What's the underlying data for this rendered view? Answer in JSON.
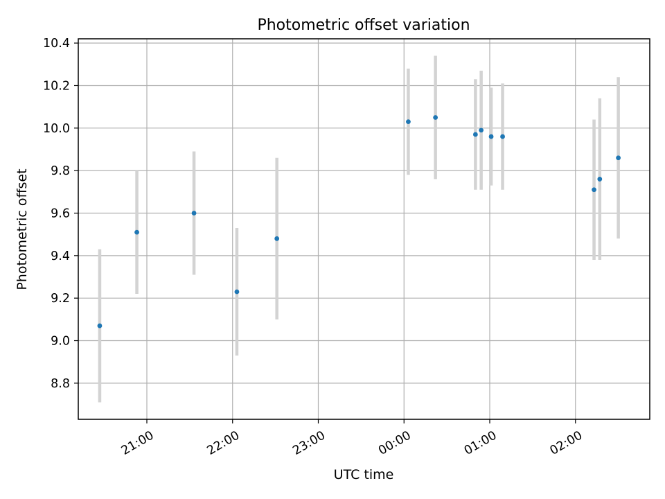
{
  "chart_data": {
    "type": "scatter",
    "title": "Photometric offset variation",
    "xlabel": "UTC time",
    "ylabel": "Photometric offset",
    "x_ticks": [
      "21:00",
      "22:00",
      "23:00",
      "00:00",
      "01:00",
      "02:00"
    ],
    "y_ticks": [
      "8.8",
      "9.0",
      "9.2",
      "9.4",
      "9.6",
      "9.8",
      "10.0",
      "10.2",
      "10.4"
    ],
    "y_tick_values": [
      8.8,
      9.0,
      9.2,
      9.4,
      9.6,
      9.8,
      10.0,
      10.2,
      10.4
    ],
    "xlim": [
      "20:12",
      "02:52"
    ],
    "ylim": [
      8.63,
      10.42
    ],
    "grid": true,
    "colors": {
      "points": "#1f77b4",
      "errorbars": "#d3d3d3",
      "grid": "#b0b0b0"
    },
    "series": [
      {
        "points": [
          {
            "x": "20:27",
            "y": 9.07,
            "err": 0.36
          },
          {
            "x": "20:53",
            "y": 9.51,
            "err": 0.29
          },
          {
            "x": "21:33",
            "y": 9.6,
            "err": 0.29
          },
          {
            "x": "22:03",
            "y": 9.23,
            "err": 0.3
          },
          {
            "x": "22:31",
            "y": 9.48,
            "err": 0.38
          },
          {
            "x": "00:03",
            "y": 10.03,
            "err": 0.25
          },
          {
            "x": "00:22",
            "y": 10.05,
            "err": 0.29
          },
          {
            "x": "00:50",
            "y": 9.97,
            "err": 0.26
          },
          {
            "x": "00:54",
            "y": 9.99,
            "err": 0.28
          },
          {
            "x": "01:01",
            "y": 9.96,
            "err": 0.23
          },
          {
            "x": "01:09",
            "y": 9.96,
            "err": 0.25
          },
          {
            "x": "02:13",
            "y": 9.71,
            "err": 0.33
          },
          {
            "x": "02:17",
            "y": 9.76,
            "err": 0.38
          },
          {
            "x": "02:30",
            "y": 9.86,
            "err": 0.38
          }
        ]
      }
    ]
  }
}
